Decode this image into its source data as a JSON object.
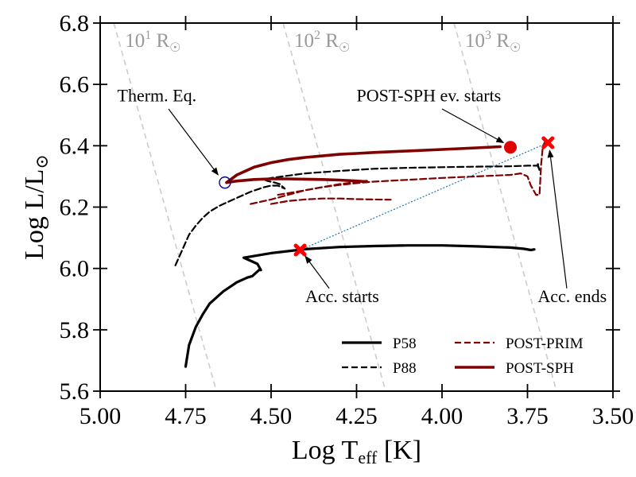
{
  "chart_data": {
    "type": "line",
    "title": "",
    "xlabel": "Log T",
    "xlabel_sub": "eff",
    "xlabel_unit": " [K]",
    "ylabel": "Log L/L",
    "ylabel_sub": "⊙",
    "xlim": [
      5.0,
      3.5
    ],
    "ylim": [
      5.6,
      6.8
    ],
    "x_ticks": [
      "5.00",
      "4.75",
      "4.50",
      "4.25",
      "4.00",
      "3.75",
      "3.50"
    ],
    "y_ticks": [
      "5.6",
      "5.8",
      "6.0",
      "6.2",
      "6.4",
      "6.6",
      "6.8"
    ],
    "grid": false,
    "legend_position": "lower-right",
    "series": [
      {
        "name": "P58",
        "style": "solid-thick",
        "color": "#000000",
        "x": [
          4.75,
          4.74,
          4.72,
          4.7,
          4.68,
          4.66,
          4.64,
          4.62,
          4.6,
          4.58,
          4.57,
          4.555,
          4.54,
          4.535,
          4.53,
          4.54,
          4.55,
          4.56,
          4.57,
          4.58,
          4.5,
          4.4,
          4.3,
          4.2,
          4.1,
          4.0,
          3.9,
          3.8,
          3.76,
          3.74,
          3.73
        ],
        "y": [
          5.68,
          5.75,
          5.81,
          5.85,
          5.885,
          5.905,
          5.925,
          5.94,
          5.955,
          5.965,
          5.97,
          5.975,
          5.99,
          5.995,
          5.995,
          6.015,
          6.02,
          6.025,
          6.03,
          6.035,
          6.05,
          6.063,
          6.07,
          6.073,
          6.075,
          6.075,
          6.072,
          6.068,
          6.064,
          6.06,
          6.062
        ]
      },
      {
        "name": "P88",
        "style": "dashed",
        "color": "#000000",
        "x": [
          4.78,
          4.76,
          4.74,
          4.72,
          4.7,
          4.68,
          4.65,
          4.62,
          4.6,
          4.58,
          4.56,
          4.52,
          4.5,
          4.48,
          4.46,
          4.475,
          4.49,
          4.51,
          4.52,
          4.5,
          4.4,
          4.3,
          4.2,
          4.1,
          4.0,
          3.9,
          3.8,
          3.75,
          3.72,
          3.715,
          3.72,
          3.71
        ],
        "y": [
          6.01,
          6.06,
          6.11,
          6.14,
          6.165,
          6.185,
          6.205,
          6.22,
          6.23,
          6.24,
          6.25,
          6.265,
          6.27,
          6.27,
          6.26,
          6.275,
          6.28,
          6.285,
          6.29,
          6.295,
          6.31,
          6.318,
          6.325,
          6.328,
          6.33,
          6.332,
          6.333,
          6.335,
          6.335,
          6.32,
          6.34,
          6.34
        ]
      },
      {
        "name": "POST-PRIM",
        "style": "dashed-dark-red",
        "color": "#7f0000",
        "x": [
          4.56,
          4.5,
          4.45,
          4.4,
          4.35,
          4.3,
          4.25,
          4.2,
          4.15,
          4.1,
          4.0,
          3.9,
          3.8,
          3.77,
          3.75,
          3.74,
          3.725,
          3.715,
          3.71,
          3.705,
          3.7
        ],
        "y": [
          6.21,
          6.225,
          6.24,
          6.255,
          6.265,
          6.272,
          6.278,
          6.283,
          6.286,
          6.289,
          6.295,
          6.3,
          6.305,
          6.31,
          6.3,
          6.27,
          6.24,
          6.24,
          6.34,
          6.4,
          6.41
        ]
      },
      {
        "name": "",
        "style": "dashed-dark-red",
        "color": "#7f0000",
        "x": [
          4.5,
          4.45,
          4.4,
          4.35,
          4.3,
          4.25,
          4.2,
          4.15
        ],
        "y": [
          6.21,
          6.22,
          6.225,
          6.228,
          6.228,
          6.226,
          6.225,
          6.224
        ]
      },
      {
        "name": "",
        "style": "dashed-dark-red",
        "color": "#7f0000",
        "x": [
          4.48,
          4.4,
          4.35,
          4.3,
          4.25,
          4.22
        ],
        "y": [
          6.24,
          6.255,
          6.265,
          6.275,
          6.282,
          6.286
        ]
      },
      {
        "name": "POST-SPH",
        "style": "solid-thick-dark-red",
        "color": "#7f0000",
        "x": [
          4.63,
          4.6,
          4.55,
          4.5,
          4.45,
          4.4,
          4.35,
          4.3,
          4.25,
          4.2,
          4.1,
          4.0,
          3.9,
          3.83
        ],
        "y": [
          6.28,
          6.305,
          6.33,
          6.345,
          6.355,
          6.362,
          6.367,
          6.372,
          6.375,
          6.378,
          6.383,
          6.388,
          6.393,
          6.397
        ]
      },
      {
        "name": "",
        "style": "solid-thick-dark-red",
        "color": "#7f0000",
        "x": [
          4.63,
          4.6,
          4.55,
          4.5,
          4.45,
          4.4,
          4.35,
          4.3,
          4.25,
          4.22
        ],
        "y": [
          6.28,
          6.285,
          6.29,
          6.292,
          6.292,
          6.291,
          6.29,
          6.288,
          6.285,
          6.283
        ]
      }
    ],
    "connector": {
      "style": "dotted",
      "color": "#1f77b4",
      "x": [
        4.415,
        3.69
      ],
      "y": [
        6.06,
        6.41
      ]
    },
    "markers": [
      {
        "name": "therm-eq",
        "shape": "open-circle",
        "color": "#00008b",
        "x": 4.635,
        "y": 6.28
      },
      {
        "name": "post-sph-start",
        "shape": "filled-circle",
        "color": "#e00000",
        "x": 3.8,
        "y": 6.395
      },
      {
        "name": "acc-starts",
        "shape": "x-cross",
        "color": "#ff0000",
        "x": 4.415,
        "y": 6.06
      },
      {
        "name": "acc-ends",
        "shape": "x-cross",
        "color": "#ff0000",
        "x": 3.69,
        "y": 6.41
      }
    ],
    "radius_lines": [
      {
        "label_base": "10",
        "label_exp": "1",
        "label_unit": " R",
        "label_sun": "☉",
        "x": [
          4.96,
          4.66
        ],
        "y": [
          6.8,
          5.6
        ]
      },
      {
        "label_base": "10",
        "label_exp": "2",
        "label_unit": " R",
        "label_sun": "☉",
        "x": [
          4.465,
          4.165
        ],
        "y": [
          6.8,
          5.6
        ]
      },
      {
        "label_base": "10",
        "label_exp": "3",
        "label_unit": " R",
        "label_sun": "☉",
        "x": [
          3.965,
          3.665
        ],
        "y": [
          6.8,
          5.6
        ]
      }
    ],
    "annotations": [
      {
        "text": "Therm. Eq.",
        "text_x": 4.95,
        "text_y": 6.545,
        "arrow_from_x": 4.8,
        "arrow_from_y": 6.52,
        "arrow_to_x": 4.655,
        "arrow_to_y": 6.305
      },
      {
        "text": "POST-SPH ev. starts",
        "text_x": 4.25,
        "text_y": 6.545,
        "arrow_from_x": 4.0,
        "arrow_from_y": 6.52,
        "arrow_to_x": 3.82,
        "arrow_to_y": 6.41
      },
      {
        "text": "Acc. starts",
        "text_x": 4.4,
        "text_y": 5.89,
        "arrow_from_x": 4.33,
        "arrow_from_y": 5.935,
        "arrow_to_x": 4.4,
        "arrow_to_y": 6.04
      },
      {
        "text": "Acc. ends",
        "text_x": 3.72,
        "text_y": 5.89,
        "arrow_from_x": 3.635,
        "arrow_from_y": 5.935,
        "arrow_to_x": 3.685,
        "arrow_to_y": 6.385
      }
    ]
  }
}
